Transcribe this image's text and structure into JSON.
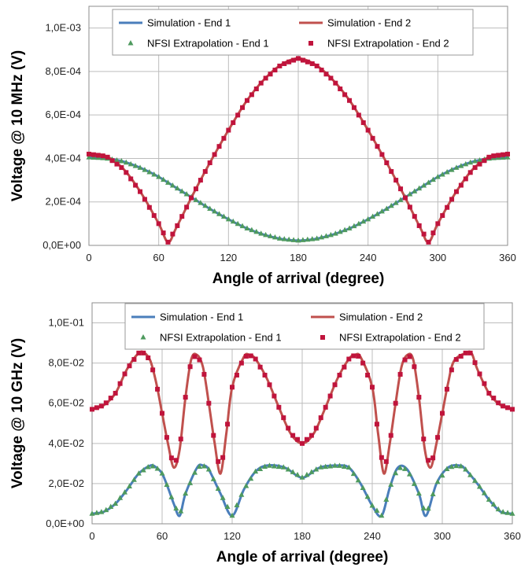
{
  "colors": {
    "end1": "#4a7ebb",
    "end2": "#c0504d",
    "nfsi_end1": "#4e9a5e",
    "nfsi_end2": "#c0143c"
  },
  "chart_data": [
    {
      "type": "line",
      "xlabel": "Angle of arrival (degree)",
      "ylabel": "Voltage @ 10 MHz (V)",
      "xlim": [
        0,
        360
      ],
      "ylim": [
        0,
        0.0011
      ],
      "xticks": [
        0,
        60,
        120,
        180,
        240,
        300,
        360
      ],
      "yticks": [
        0,
        0.0002,
        0.0004,
        0.0006,
        0.0008,
        0.001
      ],
      "xtick_labels": [
        "0",
        "60",
        "120",
        "180",
        "240",
        "300",
        "360"
      ],
      "ytick_labels": [
        "0,0E+00",
        "2,0E-04",
        "4,0E-04",
        "6,0E-04",
        "8,0E-04",
        "1,0E-03"
      ],
      "grid": true,
      "legend_position": "top",
      "series": [
        {
          "name": "Simulation - End 1",
          "style": "line",
          "x": [
            0,
            15,
            30,
            45,
            60,
            75,
            90,
            105,
            120,
            135,
            150,
            165,
            180,
            195,
            210,
            225,
            240,
            255,
            270,
            285,
            300,
            315,
            330,
            345,
            360
          ],
          "y": [
            0.000405,
            0.0004,
            0.000385,
            0.000355,
            0.000315,
            0.000265,
            0.000215,
            0.000165,
            0.00012,
            8e-05,
            5e-05,
            3e-05,
            2.2e-05,
            3e-05,
            5e-05,
            8e-05,
            0.00012,
            0.000165,
            0.000215,
            0.000265,
            0.000315,
            0.000355,
            0.000385,
            0.0004,
            0.000405
          ]
        },
        {
          "name": "Simulation - End 2",
          "style": "line",
          "x": [
            0,
            15,
            30,
            45,
            60,
            68,
            75,
            90,
            105,
            120,
            135,
            150,
            165,
            180,
            195,
            210,
            225,
            240,
            255,
            270,
            285,
            292,
            300,
            315,
            330,
            345,
            360
          ],
          "y": [
            0.00042,
            0.00041,
            0.00035,
            0.00024,
            0.0001,
            1.5e-05,
            8e-05,
            0.00024,
            0.00039,
            0.00053,
            0.00066,
            0.00076,
            0.00083,
            0.00086,
            0.00083,
            0.00076,
            0.00066,
            0.00053,
            0.00039,
            0.00024,
            8e-05,
            1.5e-05,
            0.0001,
            0.00024,
            0.00035,
            0.00041,
            0.00042
          ]
        },
        {
          "name": "NFSI Extrapolation - End 1",
          "style": "triangle",
          "ref": 0,
          "step": 4
        },
        {
          "name": "NFSI Extrapolation - End 2",
          "style": "square",
          "ref": 1,
          "step": 4
        }
      ]
    },
    {
      "type": "line",
      "xlabel": "Angle of arrival (degree)",
      "ylabel": "Voltage @ 10 GHz (V)",
      "xlim": [
        0,
        360
      ],
      "ylim": [
        0,
        0.11
      ],
      "xticks": [
        0,
        60,
        120,
        180,
        240,
        300,
        360
      ],
      "yticks": [
        0,
        0.02,
        0.04,
        0.06,
        0.08,
        0.1
      ],
      "xtick_labels": [
        "0",
        "60",
        "120",
        "180",
        "240",
        "300",
        "360"
      ],
      "ytick_labels": [
        "0,0E+00",
        "2,0E-02",
        "4,0E-02",
        "6,0E-02",
        "8,0E-02",
        "1,0E-01"
      ],
      "grid": true,
      "legend_position": "top",
      "series": [
        {
          "name": "Simulation - End 1",
          "style": "line",
          "x": [
            0,
            10,
            20,
            30,
            40,
            50,
            55,
            60,
            65,
            70,
            75,
            80,
            90,
            95,
            100,
            110,
            120,
            130,
            140,
            150,
            165,
            180,
            195,
            210,
            220,
            230,
            240,
            248,
            255,
            262,
            270,
            280,
            286,
            295,
            305,
            315,
            320,
            330,
            340,
            350,
            360
          ],
          "y": [
            0.005,
            0.006,
            0.01,
            0.017,
            0.025,
            0.029,
            0.028,
            0.025,
            0.018,
            0.01,
            0.004,
            0.015,
            0.028,
            0.029,
            0.027,
            0.015,
            0.004,
            0.017,
            0.026,
            0.029,
            0.028,
            0.023,
            0.028,
            0.029,
            0.028,
            0.02,
            0.009,
            0.004,
            0.018,
            0.028,
            0.027,
            0.015,
            0.004,
            0.02,
            0.028,
            0.029,
            0.027,
            0.02,
            0.012,
            0.006,
            0.005
          ]
        },
        {
          "name": "Simulation - End 2",
          "style": "line",
          "x": [
            0,
            10,
            20,
            30,
            40,
            45,
            50,
            55,
            60,
            65,
            70,
            75,
            80,
            85,
            90,
            95,
            100,
            105,
            110,
            115,
            120,
            130,
            135,
            140,
            150,
            160,
            170,
            180,
            190,
            200,
            210,
            220,
            225,
            230,
            240,
            245,
            250,
            255,
            260,
            265,
            270,
            275,
            280,
            285,
            290,
            295,
            300,
            305,
            310,
            320,
            325,
            330,
            340,
            350,
            360
          ],
          "y": [
            0.057,
            0.059,
            0.065,
            0.077,
            0.085,
            0.085,
            0.081,
            0.07,
            0.055,
            0.04,
            0.028,
            0.037,
            0.063,
            0.082,
            0.084,
            0.078,
            0.06,
            0.04,
            0.025,
            0.045,
            0.068,
            0.083,
            0.084,
            0.082,
            0.072,
            0.058,
            0.045,
            0.04,
            0.045,
            0.058,
            0.072,
            0.082,
            0.084,
            0.083,
            0.068,
            0.045,
            0.025,
            0.04,
            0.06,
            0.078,
            0.084,
            0.082,
            0.063,
            0.037,
            0.028,
            0.04,
            0.055,
            0.07,
            0.081,
            0.085,
            0.085,
            0.077,
            0.065,
            0.059,
            0.057
          ]
        },
        {
          "name": "NFSI Extrapolation - End 1",
          "style": "triangle",
          "ref": 0,
          "step": 4
        },
        {
          "name": "NFSI Extrapolation - End 2",
          "style": "square",
          "ref": 1,
          "step": 4
        }
      ]
    }
  ]
}
